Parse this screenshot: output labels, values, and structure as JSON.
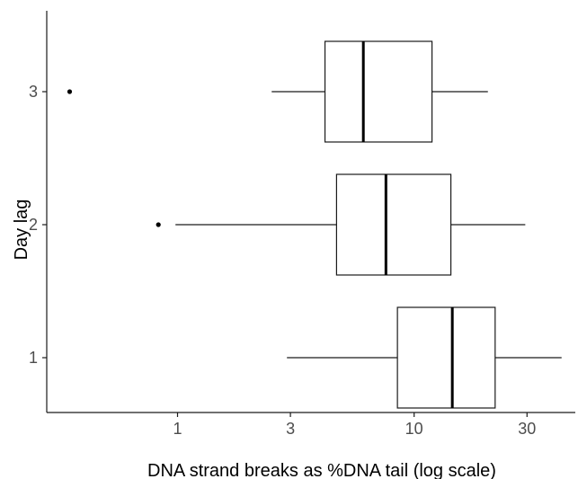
{
  "chart_data": {
    "type": "boxplot",
    "orientation": "horizontal",
    "title": "",
    "xlabel": "DNA strand breaks as %DNA tail (log scale)",
    "ylabel": "Day lag",
    "x_scale": "log10",
    "xlim": [
      0.28,
      48
    ],
    "x_ticks": [
      1,
      3,
      10,
      30
    ],
    "x_tick_labels": [
      "1",
      "3",
      "10",
      "30"
    ],
    "categories": [
      "1",
      "2",
      "3"
    ],
    "boxes": [
      {
        "category": "1",
        "whisker_low": 2.9,
        "q1": 8.5,
        "median": 14.5,
        "q3": 22,
        "whisker_high": 42,
        "outliers": []
      },
      {
        "category": "2",
        "whisker_low": 0.98,
        "q1": 4.7,
        "median": 7.6,
        "q3": 14.3,
        "whisker_high": 29.5,
        "outliers": [
          0.83
        ]
      },
      {
        "category": "3",
        "whisker_low": 2.5,
        "q1": 4.2,
        "median": 6.1,
        "q3": 11.9,
        "whisker_high": 20.5,
        "outliers": [
          0.35
        ]
      }
    ],
    "grid": false,
    "legend": "none"
  }
}
